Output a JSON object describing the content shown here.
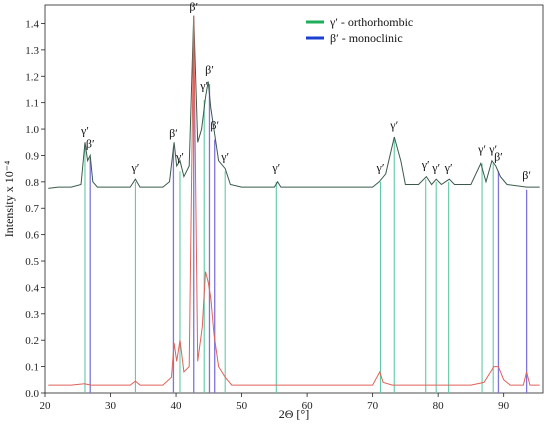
{
  "chart_data": {
    "type": "line",
    "title": "",
    "xlabel": "2Θ [°]",
    "ylabel": "Intensity x 10⁻⁴",
    "xlim": [
      20,
      96
    ],
    "ylim": [
      0,
      1.47
    ],
    "xticks": [
      20,
      30,
      40,
      50,
      60,
      70,
      80,
      90
    ],
    "yticks": [
      0.0,
      0.1,
      0.2,
      0.3,
      0.4,
      0.5,
      0.6,
      0.7,
      0.8,
      0.9,
      1.0,
      1.1,
      1.2,
      1.3,
      1.4
    ],
    "grid": false,
    "legend_position": "top-center",
    "legend": [
      {
        "label": "γ′ - orthorhombic",
        "color": "#1fae5a"
      },
      {
        "label": "β′ - monoclinic",
        "color": "#1a3fd1"
      }
    ],
    "series": [
      {
        "color": "#3a5a4a",
        "points": [
          [
            20.5,
            0.775
          ],
          [
            22,
            0.78
          ],
          [
            24,
            0.78
          ],
          [
            25.5,
            0.79
          ],
          [
            26.1,
            0.95
          ],
          [
            26.5,
            0.88
          ],
          [
            26.9,
            0.9
          ],
          [
            27.3,
            0.8
          ],
          [
            28,
            0.78
          ],
          [
            30,
            0.78
          ],
          [
            33,
            0.78
          ],
          [
            33.8,
            0.81
          ],
          [
            34.5,
            0.78
          ],
          [
            38,
            0.78
          ],
          [
            39,
            0.8
          ],
          [
            39.7,
            0.95
          ],
          [
            40.1,
            0.86
          ],
          [
            40.6,
            0.88
          ],
          [
            41.2,
            0.82
          ],
          [
            42,
            0.86
          ],
          [
            42.7,
            1.43
          ],
          [
            43.3,
            0.95
          ],
          [
            43.9,
            1.0
          ],
          [
            44.5,
            1.12
          ],
          [
            44.9,
            1.18
          ],
          [
            45.3,
            1.08
          ],
          [
            45.9,
            0.98
          ],
          [
            46.5,
            0.88
          ],
          [
            47.5,
            0.85
          ],
          [
            48.3,
            0.79
          ],
          [
            50,
            0.78
          ],
          [
            55,
            0.78
          ],
          [
            55.5,
            0.8
          ],
          [
            56,
            0.78
          ],
          [
            60,
            0.78
          ],
          [
            65,
            0.78
          ],
          [
            70,
            0.78
          ],
          [
            71,
            0.8
          ],
          [
            72,
            0.83
          ],
          [
            73.3,
            0.97
          ],
          [
            74.3,
            0.88
          ],
          [
            75,
            0.79
          ],
          [
            77,
            0.79
          ],
          [
            78.2,
            0.82
          ],
          [
            79,
            0.79
          ],
          [
            79.7,
            0.81
          ],
          [
            80.5,
            0.79
          ],
          [
            81.7,
            0.81
          ],
          [
            82.5,
            0.79
          ],
          [
            85,
            0.79
          ],
          [
            86.5,
            0.87
          ],
          [
            87.3,
            0.8
          ],
          [
            88.2,
            0.88
          ],
          [
            88.8,
            0.86
          ],
          [
            89.5,
            0.82
          ],
          [
            90.5,
            0.79
          ],
          [
            93.5,
            0.78
          ],
          [
            95.5,
            0.78
          ]
        ]
      },
      {
        "color": "#e0625a",
        "points": [
          [
            20.5,
            0.03
          ],
          [
            22,
            0.03
          ],
          [
            24,
            0.03
          ],
          [
            26,
            0.035
          ],
          [
            27,
            0.03
          ],
          [
            30,
            0.03
          ],
          [
            33,
            0.03
          ],
          [
            33.8,
            0.045
          ],
          [
            34.5,
            0.03
          ],
          [
            38,
            0.03
          ],
          [
            39.3,
            0.06
          ],
          [
            39.7,
            0.19
          ],
          [
            40.1,
            0.12
          ],
          [
            40.6,
            0.2
          ],
          [
            41.2,
            0.08
          ],
          [
            42,
            0.1
          ],
          [
            42.7,
            1.43
          ],
          [
            43.3,
            0.12
          ],
          [
            44,
            0.25
          ],
          [
            44.5,
            0.46
          ],
          [
            44.9,
            0.42
          ],
          [
            45.3,
            0.36
          ],
          [
            45.8,
            0.22
          ],
          [
            46.5,
            0.1
          ],
          [
            47.5,
            0.06
          ],
          [
            48.5,
            0.03
          ],
          [
            55,
            0.03
          ],
          [
            56,
            0.03
          ],
          [
            60,
            0.03
          ],
          [
            65,
            0.03
          ],
          [
            70,
            0.03
          ],
          [
            71.1,
            0.08
          ],
          [
            71.6,
            0.04
          ],
          [
            73,
            0.03
          ],
          [
            75,
            0.03
          ],
          [
            78,
            0.03
          ],
          [
            82,
            0.03
          ],
          [
            85,
            0.03
          ],
          [
            87,
            0.04
          ],
          [
            88.5,
            0.1
          ],
          [
            89.2,
            0.1
          ],
          [
            90,
            0.05
          ],
          [
            91,
            0.03
          ],
          [
            93,
            0.03
          ],
          [
            93.5,
            0.08
          ],
          [
            94,
            0.03
          ],
          [
            95.5,
            0.03
          ]
        ]
      }
    ],
    "peaks": [
      {
        "x": 26.1,
        "label": "γ′",
        "phase": "gamma",
        "label_y": 0.98
      },
      {
        "x": 26.9,
        "label": "β′",
        "phase": "beta",
        "label_y": 0.93
      },
      {
        "x": 33.8,
        "label": "γ′",
        "phase": "gamma",
        "label_y": 0.84
      },
      {
        "x": 39.6,
        "label": "β′",
        "phase": "beta",
        "label_y": 0.97
      },
      {
        "x": 40.6,
        "label": "γ′",
        "phase": "gamma",
        "label_y": 0.88
      },
      {
        "x": 42.7,
        "label": "β′",
        "phase": "beta",
        "label_y": 1.45
      },
      {
        "x": 44.3,
        "label": "γ′",
        "phase": "gamma",
        "label_y": 1.15
      },
      {
        "x": 45.1,
        "label": "β′",
        "phase": "beta",
        "label_y": 1.21
      },
      {
        "x": 45.9,
        "label": "β′",
        "phase": "beta",
        "label_y": 1.0
      },
      {
        "x": 47.5,
        "label": "γ′",
        "phase": "gamma",
        "label_y": 0.88
      },
      {
        "x": 55.3,
        "label": "γ′",
        "phase": "gamma",
        "label_y": 0.84
      },
      {
        "x": 71.2,
        "label": "γ′",
        "phase": "gamma",
        "label_y": 0.84
      },
      {
        "x": 73.3,
        "label": "γ′",
        "phase": "gamma",
        "label_y": 1.0
      },
      {
        "x": 78.1,
        "label": "γ′",
        "phase": "gamma",
        "label_y": 0.85
      },
      {
        "x": 79.7,
        "label": "γ′",
        "phase": "gamma",
        "label_y": 0.84
      },
      {
        "x": 81.6,
        "label": "γ′",
        "phase": "gamma",
        "label_y": 0.84
      },
      {
        "x": 86.7,
        "label": "γ′",
        "phase": "gamma",
        "label_y": 0.91
      },
      {
        "x": 88.4,
        "label": "γ′",
        "phase": "gamma",
        "label_y": 0.91
      },
      {
        "x": 89.2,
        "label": "β′",
        "phase": "beta",
        "label_y": 0.88
      },
      {
        "x": 93.5,
        "label": "β′",
        "phase": "beta",
        "label_y": 0.81
      }
    ],
    "phase_colors": {
      "gamma": "#1fae5a",
      "beta": "#1a3fd1",
      "gamma_line": "#62c9a6",
      "beta_line": "#7f74d8"
    }
  }
}
